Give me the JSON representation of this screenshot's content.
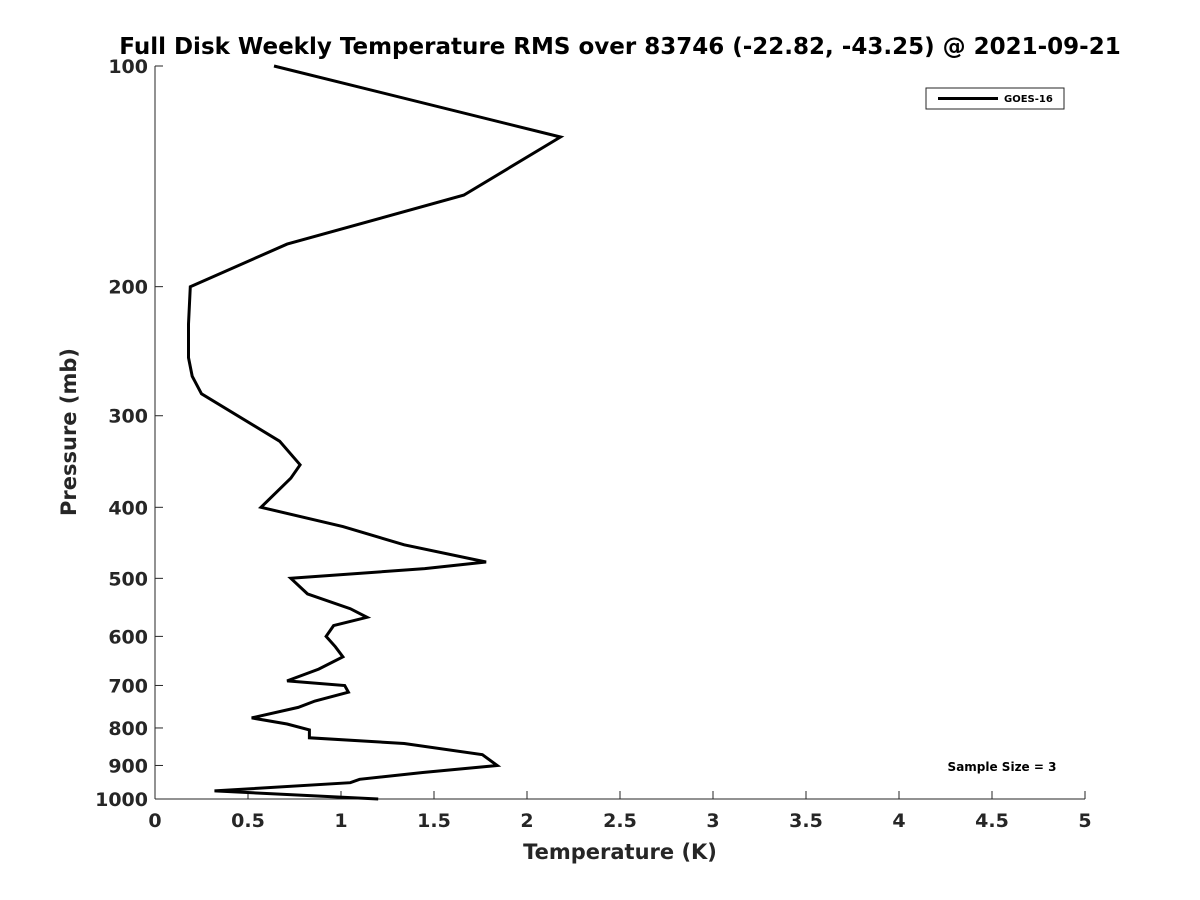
{
  "chart_data": {
    "type": "line",
    "title": "Full Disk Weekly Temperature RMS over 83746 (-22.82, -43.25) @ 2021-09-21",
    "xlabel": "Temperature (K)",
    "ylabel": "Pressure (mb)",
    "xlim": [
      0,
      5
    ],
    "ylim": [
      1000,
      100
    ],
    "yscale": "log",
    "x_ticks": [
      0,
      0.5,
      1,
      1.5,
      2,
      2.5,
      3,
      3.5,
      4,
      4.5,
      5
    ],
    "x_tick_labels": [
      "0",
      "0.5",
      "1",
      "1.5",
      "2",
      "2.5",
      "3",
      "3.5",
      "4",
      "4.5",
      "5"
    ],
    "y_ticks": [
      100,
      200,
      300,
      400,
      500,
      600,
      700,
      800,
      900,
      1000
    ],
    "y_tick_labels": [
      "100",
      "200",
      "300",
      "400",
      "500",
      "600",
      "700",
      "800",
      "900",
      "1000"
    ],
    "grid": false,
    "legend_position": "top-right",
    "annotation": "Sample Size = 3",
    "series": [
      {
        "name": "GOES-16",
        "color": "#000000",
        "points": [
          [
            0.64,
            100
          ],
          [
            2.18,
            125
          ],
          [
            1.66,
            150
          ],
          [
            0.71,
            175
          ],
          [
            0.19,
            200
          ],
          [
            0.18,
            225
          ],
          [
            0.18,
            250
          ],
          [
            0.2,
            265
          ],
          [
            0.25,
            280
          ],
          [
            0.67,
            325
          ],
          [
            0.78,
            350
          ],
          [
            0.73,
            365
          ],
          [
            0.57,
            400
          ],
          [
            1.01,
            425
          ],
          [
            1.34,
            450
          ],
          [
            1.78,
            475
          ],
          [
            1.45,
            485
          ],
          [
            0.73,
            500
          ],
          [
            0.82,
            525
          ],
          [
            1.05,
            550
          ],
          [
            1.14,
            565
          ],
          [
            0.96,
            580
          ],
          [
            0.92,
            600
          ],
          [
            0.97,
            620
          ],
          [
            1.01,
            640
          ],
          [
            0.88,
            665
          ],
          [
            0.71,
            690
          ],
          [
            1.02,
            700
          ],
          [
            1.04,
            715
          ],
          [
            0.86,
            735
          ],
          [
            0.77,
            750
          ],
          [
            0.52,
            775
          ],
          [
            0.71,
            790
          ],
          [
            0.83,
            805
          ],
          [
            0.83,
            825
          ],
          [
            1.34,
            840
          ],
          [
            1.76,
            870
          ],
          [
            1.84,
            900
          ],
          [
            1.44,
            920
          ],
          [
            1.1,
            940
          ],
          [
            1.05,
            950
          ],
          [
            0.32,
            975
          ],
          [
            1.2,
            1000
          ]
        ]
      }
    ]
  }
}
